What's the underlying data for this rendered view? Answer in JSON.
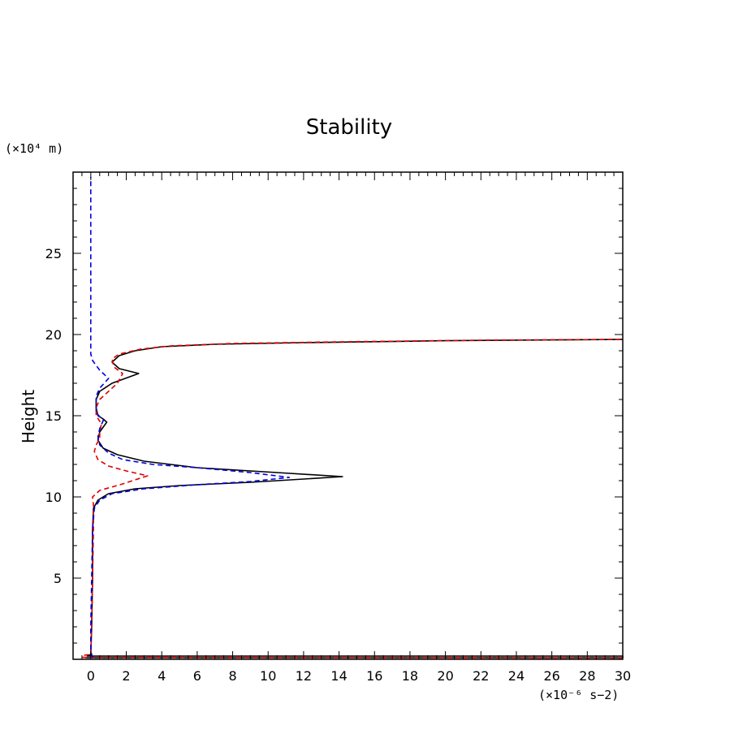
{
  "chart_data": {
    "type": "line",
    "title": "Stability",
    "ylabel": "Height",
    "y_unit": "(×10⁴ m)",
    "x_unit": "(×10⁻⁶ s−2)",
    "xlim": [
      -1,
      30
    ],
    "ylim": [
      0,
      30
    ],
    "x_ticks": [
      0,
      2,
      4,
      6,
      8,
      10,
      12,
      14,
      16,
      18,
      20,
      22,
      24,
      26,
      28,
      30
    ],
    "y_ticks": [
      5,
      10,
      15,
      20,
      25
    ],
    "grid": false,
    "series": [
      {
        "color": "#000000",
        "style": "solid",
        "points": [
          [
            -0.3,
            0.1
          ],
          [
            30,
            0.1
          ],
          [
            30,
            0.2
          ],
          [
            -0.2,
            0.2
          ],
          [
            0,
            0.3
          ],
          [
            0.05,
            2
          ],
          [
            0.1,
            5
          ],
          [
            0.1,
            8
          ],
          [
            0.15,
            9.3
          ],
          [
            0.4,
            9.8
          ],
          [
            1,
            10.2
          ],
          [
            2.5,
            10.5
          ],
          [
            5,
            10.7
          ],
          [
            9,
            10.9
          ],
          [
            12,
            11.1
          ],
          [
            14.2,
            11.25
          ],
          [
            10.5,
            11.5
          ],
          [
            6,
            11.8
          ],
          [
            3,
            12.2
          ],
          [
            1.5,
            12.6
          ],
          [
            0.7,
            13
          ],
          [
            0.4,
            13.5
          ],
          [
            0.5,
            14
          ],
          [
            0.7,
            14.3
          ],
          [
            0.9,
            14.6
          ],
          [
            0.7,
            14.8
          ],
          [
            0.4,
            15
          ],
          [
            0.3,
            15.5
          ],
          [
            0.3,
            16
          ],
          [
            0.5,
            16.5
          ],
          [
            1.2,
            17
          ],
          [
            2.7,
            17.6
          ],
          [
            1.6,
            17.9
          ],
          [
            1.2,
            18.3
          ],
          [
            1.6,
            18.7
          ],
          [
            2.5,
            19
          ],
          [
            4,
            19.25
          ],
          [
            7,
            19.4
          ],
          [
            12,
            19.5
          ],
          [
            20,
            19.62
          ],
          [
            30,
            19.7
          ]
        ]
      },
      {
        "color": "#e00000",
        "style": "dashed",
        "points": [
          [
            30,
            0.08
          ],
          [
            -0.5,
            0.12
          ],
          [
            -0.4,
            0.25
          ],
          [
            0,
            0.3
          ],
          [
            0.05,
            2
          ],
          [
            0.1,
            5
          ],
          [
            0.15,
            8
          ],
          [
            0.15,
            9.5
          ],
          [
            0.1,
            10
          ],
          [
            0.5,
            10.4
          ],
          [
            1.8,
            10.8
          ],
          [
            3.2,
            11.3
          ],
          [
            2,
            11.6
          ],
          [
            1,
            11.9
          ],
          [
            0.4,
            12.3
          ],
          [
            0.2,
            12.8
          ],
          [
            0.3,
            13.2
          ],
          [
            0.5,
            13.6
          ],
          [
            0.5,
            14
          ],
          [
            0.6,
            14.5
          ],
          [
            0.3,
            15
          ],
          [
            0.3,
            15.5
          ],
          [
            0.5,
            16
          ],
          [
            1,
            16.5
          ],
          [
            1.5,
            17
          ],
          [
            1.8,
            17.6
          ],
          [
            1.3,
            18
          ],
          [
            1.2,
            18.5
          ],
          [
            1.6,
            18.8
          ],
          [
            2.8,
            19.1
          ],
          [
            4.5,
            19.3
          ],
          [
            8,
            19.45
          ],
          [
            14,
            19.55
          ],
          [
            22,
            19.65
          ],
          [
            30,
            19.7
          ]
        ]
      },
      {
        "color": "#0000e0",
        "style": "dashed",
        "points": [
          [
            0.1,
            0.1
          ],
          [
            0,
            0.5
          ],
          [
            0,
            2
          ],
          [
            0.05,
            5
          ],
          [
            0.1,
            8
          ],
          [
            0.2,
            9.3
          ],
          [
            0.5,
            9.8
          ],
          [
            1.2,
            10.2
          ],
          [
            3,
            10.5
          ],
          [
            6,
            10.75
          ],
          [
            9,
            10.95
          ],
          [
            11.2,
            11.2
          ],
          [
            9,
            11.5
          ],
          [
            6,
            11.8
          ],
          [
            3.5,
            12
          ],
          [
            1.8,
            12.3
          ],
          [
            1,
            12.7
          ],
          [
            0.5,
            13.2
          ],
          [
            0.4,
            13.7
          ],
          [
            0.5,
            14.2
          ],
          [
            0.7,
            14.7
          ],
          [
            0.3,
            15.2
          ],
          [
            0.3,
            15.8
          ],
          [
            0.3,
            16.2
          ],
          [
            0.5,
            16.7
          ],
          [
            1,
            17.3
          ],
          [
            0.5,
            17.8
          ],
          [
            0.1,
            18.4
          ],
          [
            0,
            18.8
          ],
          [
            0,
            20
          ],
          [
            0,
            25
          ],
          [
            0,
            29.7
          ]
        ]
      }
    ]
  }
}
